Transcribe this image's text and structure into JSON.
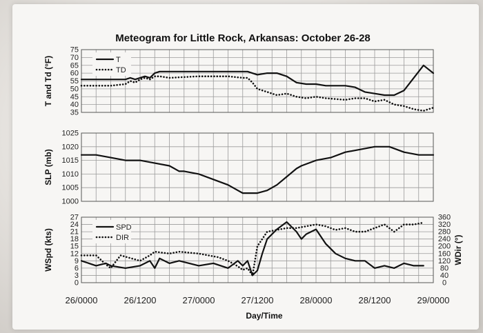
{
  "chart_data": {
    "title": "Meteogram for Little Rock, Arkansas: October 26-28",
    "xlabel": "Day/Time",
    "x_ticks": [
      "26/0000",
      "26/1200",
      "27/0000",
      "27/1200",
      "28/0000",
      "28/1200",
      "29/0000"
    ],
    "x_hours_range": [
      0,
      72
    ],
    "panels": [
      {
        "name": "temperature",
        "type": "line",
        "ylabel": "T and Td (°F)",
        "ylim": [
          35,
          75
        ],
        "yticks": [
          35,
          40,
          45,
          50,
          55,
          60,
          65,
          70,
          75
        ],
        "legend": [
          "T",
          "TD"
        ],
        "legend_position": "top-left",
        "series": [
          {
            "name": "T",
            "style": "solid",
            "x": [
              0,
              6,
              9,
              10,
              11,
              12,
              13,
              14,
              15,
              16,
              24,
              30,
              34,
              36,
              38,
              40,
              42,
              44,
              46,
              48,
              50,
              54,
              56,
              58,
              60,
              62,
              64,
              66,
              68,
              70,
              72
            ],
            "y": [
              56,
              56,
              56,
              57,
              56,
              57,
              58,
              57,
              60,
              61,
              61,
              61,
              61,
              59,
              60,
              60,
              58,
              54,
              53,
              53,
              52,
              52,
              51,
              48,
              47,
              46,
              46,
              49,
              57,
              65,
              60
            ]
          },
          {
            "name": "TD",
            "style": "dotted",
            "x": [
              0,
              6,
              9,
              10,
              11,
              12,
              13,
              14,
              15,
              16,
              18,
              24,
              30,
              33,
              34,
              35,
              36,
              38,
              40,
              42,
              44,
              46,
              48,
              50,
              54,
              56,
              58,
              60,
              62,
              64,
              66,
              68,
              70,
              72
            ],
            "y": [
              52,
              52,
              53,
              55,
              54,
              56,
              57,
              56,
              58,
              58,
              57,
              58,
              58,
              57,
              57,
              54,
              50,
              48,
              46,
              47,
              45,
              44,
              45,
              44,
              43,
              44,
              44,
              42,
              43,
              40,
              39,
              37,
              36,
              38
            ]
          }
        ]
      },
      {
        "name": "pressure",
        "type": "line",
        "ylabel": "SLP (mb)",
        "ylim": [
          1000,
          1025
        ],
        "yticks": [
          1000,
          1005,
          1010,
          1015,
          1020,
          1025
        ],
        "series": [
          {
            "name": "",
            "style": "solid",
            "x": [
              0,
              3,
              6,
              9,
              12,
              15,
              18,
              20,
              21,
              24,
              27,
              30,
              32,
              33,
              34,
              36,
              38,
              40,
              42,
              44,
              45,
              48,
              51,
              54,
              57,
              60,
              63,
              66,
              69,
              72
            ],
            "y": [
              1017,
              1017,
              1016,
              1015,
              1015,
              1014,
              1013,
              1011,
              1011,
              1010,
              1008,
              1006,
              1004,
              1003,
              1003,
              1003,
              1004,
              1006,
              1009,
              1012,
              1013,
              1015,
              1016,
              1018,
              1019,
              1020,
              1020,
              1018,
              1017,
              1017
            ]
          }
        ]
      },
      {
        "name": "wind",
        "type": "line",
        "ylabel": "WSpd (kts)",
        "y2label": "WDir (°)",
        "ylim": [
          0,
          27
        ],
        "yticks": [
          0,
          3,
          6,
          9,
          12,
          15,
          18,
          21,
          24,
          27
        ],
        "y2lim": [
          0,
          360
        ],
        "y2ticks": [
          0,
          40,
          80,
          120,
          160,
          200,
          240,
          280,
          320,
          360
        ],
        "legend": [
          "SPD",
          "DIR"
        ],
        "legend_position": "top-left",
        "series": [
          {
            "name": "SPD",
            "style": "solid",
            "axis": "left",
            "x": [
              0,
              3,
              5,
              6,
              9,
              12,
              14,
              15,
              16,
              18,
              20,
              24,
              27,
              30,
              32,
              33,
              34,
              35,
              36,
              37,
              38,
              40,
              42,
              44,
              45,
              46,
              48,
              50,
              52,
              54,
              56,
              58,
              60,
              62,
              64,
              66,
              68,
              70
            ],
            "y": [
              9,
              7,
              8,
              7,
              6,
              7,
              9,
              6,
              10,
              8,
              9,
              7,
              8,
              6,
              9,
              7,
              9,
              3,
              5,
              12,
              18,
              22,
              25,
              21,
              18,
              20,
              22,
              16,
              12,
              10,
              9,
              9,
              6,
              7,
              6,
              8,
              7,
              7
            ]
          },
          {
            "name": "DIR",
            "style": "dotted",
            "axis": "right",
            "x": [
              0,
              3,
              5,
              6,
              8,
              12,
              14,
              15,
              18,
              20,
              24,
              28,
              30,
              32,
              33,
              34,
              35,
              36,
              38,
              40,
              42,
              44,
              46,
              48,
              50,
              52,
              54,
              56,
              58,
              60,
              62,
              64,
              66,
              68,
              70
            ],
            "y": [
              150,
              150,
              100,
              80,
              150,
              120,
              150,
              170,
              160,
              170,
              160,
              140,
              120,
              90,
              70,
              80,
              40,
              200,
              280,
              290,
              300,
              300,
              310,
              320,
              310,
              290,
              300,
              280,
              280,
              300,
              320,
              280,
              320,
              320,
              330
            ]
          }
        ]
      }
    ]
  }
}
